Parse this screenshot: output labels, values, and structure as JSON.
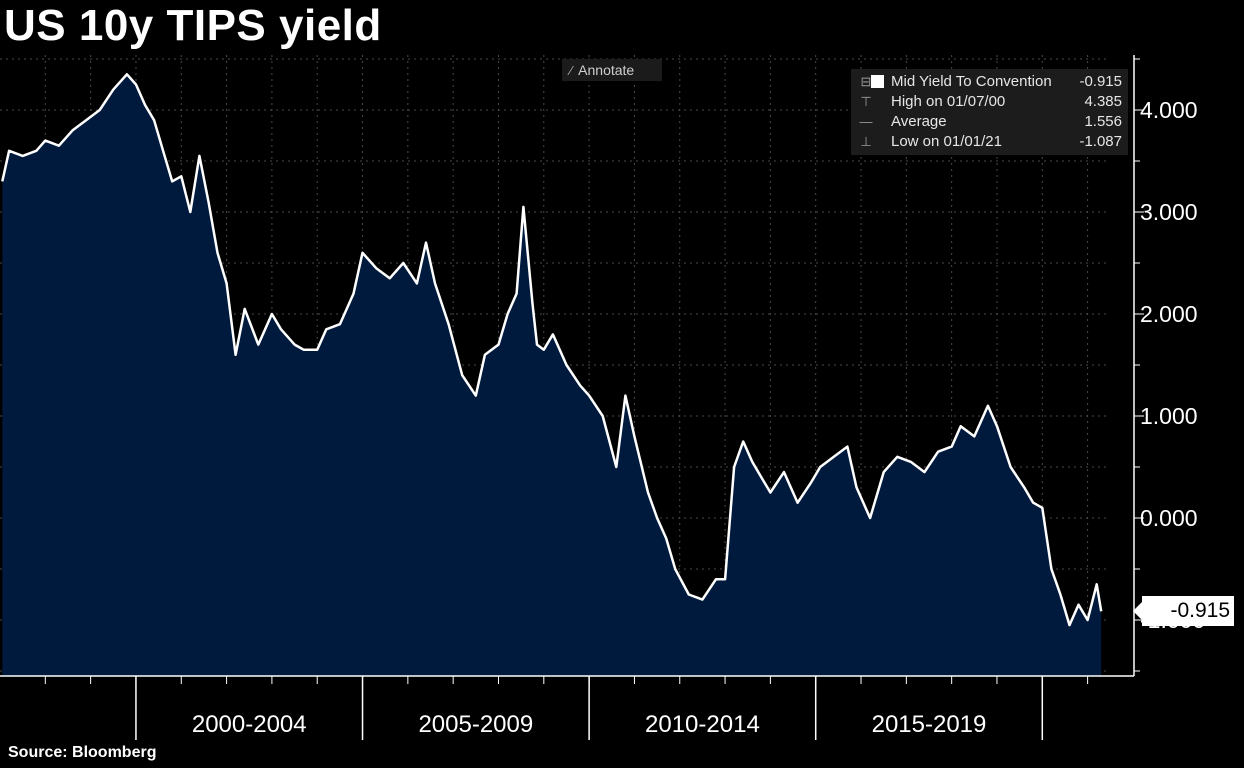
{
  "title": "US 10y TIPS yield",
  "source": "Source: Bloomberg",
  "annotate_label": "Annotate",
  "legend": {
    "series_label": "Mid Yield To Convention",
    "series_value": "-0.915",
    "high_label": "High on 01/07/00",
    "high_value": "4.385",
    "avg_label": "Average",
    "avg_value": "1.556",
    "low_label": "Low on 01/01/21",
    "low_value": "-1.087"
  },
  "last_value_label": "-0.915",
  "colors": {
    "background": "#000000",
    "area_fill": "#001a3d",
    "line": "#ffffff",
    "grid": "#555555"
  },
  "chart_data": {
    "type": "area",
    "title": "US 10y TIPS yield",
    "xlabel": "",
    "ylabel": "",
    "ylim": [
      -1.55,
      4.55
    ],
    "yticks": [
      -1,
      0,
      1,
      2,
      3,
      4
    ],
    "ytick_labels": [
      "-1.000",
      "0.000",
      "1.000",
      "2.000",
      "3.000",
      "4.000"
    ],
    "xlim": [
      1997.0,
      2021.45
    ],
    "period_labels": [
      {
        "label": "2000-2004",
        "center": 2002.5
      },
      {
        "label": "2005-2009",
        "center": 2007.5
      },
      {
        "label": "2010-2014",
        "center": 2012.5
      },
      {
        "label": "2015-2019",
        "center": 2017.5
      }
    ],
    "period_boundaries": [
      2000,
      2005,
      2010,
      2015,
      2020
    ],
    "series": [
      {
        "name": "Mid Yield To Convention",
        "x": [
          1997.05,
          1997.2,
          1997.5,
          1997.8,
          1998.0,
          1998.3,
          1998.6,
          1998.9,
          1999.2,
          1999.5,
          1999.8,
          2000.0,
          2000.2,
          2000.4,
          2000.6,
          2000.8,
          2001.0,
          2001.2,
          2001.4,
          2001.6,
          2001.8,
          2002.0,
          2002.2,
          2002.4,
          2002.7,
          2003.0,
          2003.2,
          2003.5,
          2003.7,
          2004.0,
          2004.2,
          2004.5,
          2004.8,
          2005.0,
          2005.3,
          2005.6,
          2005.9,
          2006.2,
          2006.4,
          2006.6,
          2006.9,
          2007.2,
          2007.5,
          2007.7,
          2008.0,
          2008.2,
          2008.4,
          2008.55,
          2008.75,
          2008.85,
          2009.0,
          2009.2,
          2009.5,
          2009.8,
          2010.0,
          2010.3,
          2010.6,
          2010.8,
          2011.0,
          2011.3,
          2011.5,
          2011.7,
          2011.9,
          2012.2,
          2012.5,
          2012.8,
          2013.0,
          2013.2,
          2013.4,
          2013.6,
          2013.8,
          2014.0,
          2014.3,
          2014.6,
          2014.9,
          2015.1,
          2015.4,
          2015.7,
          2015.9,
          2016.2,
          2016.5,
          2016.8,
          2017.1,
          2017.4,
          2017.7,
          2018.0,
          2018.2,
          2018.5,
          2018.8,
          2019.0,
          2019.3,
          2019.6,
          2019.8,
          2020.0,
          2020.2,
          2020.4,
          2020.6,
          2020.8,
          2021.0,
          2021.2,
          2021.3
        ],
        "values": [
          3.3,
          3.6,
          3.55,
          3.6,
          3.7,
          3.65,
          3.8,
          3.9,
          4.0,
          4.2,
          4.35,
          4.25,
          4.05,
          3.9,
          3.6,
          3.3,
          3.35,
          3.0,
          3.55,
          3.1,
          2.6,
          2.3,
          1.6,
          2.05,
          1.7,
          2.0,
          1.85,
          1.7,
          1.65,
          1.65,
          1.85,
          1.9,
          2.2,
          2.6,
          2.45,
          2.35,
          2.5,
          2.3,
          2.7,
          2.3,
          1.9,
          1.4,
          1.2,
          1.6,
          1.7,
          2.0,
          2.2,
          3.05,
          2.1,
          1.7,
          1.65,
          1.8,
          1.5,
          1.3,
          1.2,
          1.0,
          0.5,
          1.2,
          0.8,
          0.25,
          0.0,
          -0.2,
          -0.5,
          -0.75,
          -0.8,
          -0.6,
          -0.6,
          0.5,
          0.75,
          0.55,
          0.4,
          0.25,
          0.45,
          0.15,
          0.35,
          0.5,
          0.6,
          0.7,
          0.3,
          0.0,
          0.45,
          0.6,
          0.55,
          0.45,
          0.65,
          0.7,
          0.9,
          0.8,
          1.1,
          0.9,
          0.5,
          0.3,
          0.15,
          0.1,
          -0.5,
          -0.75,
          -1.05,
          -0.85,
          -1.0,
          -0.65,
          -0.915
        ]
      }
    ],
    "high": {
      "label": "High on 01/07/00",
      "value": 4.385
    },
    "average": 1.556,
    "low": {
      "label": "Low on 01/01/21",
      "value": -1.087
    },
    "last": -0.915,
    "grid": true,
    "legend_position": "top-right"
  }
}
